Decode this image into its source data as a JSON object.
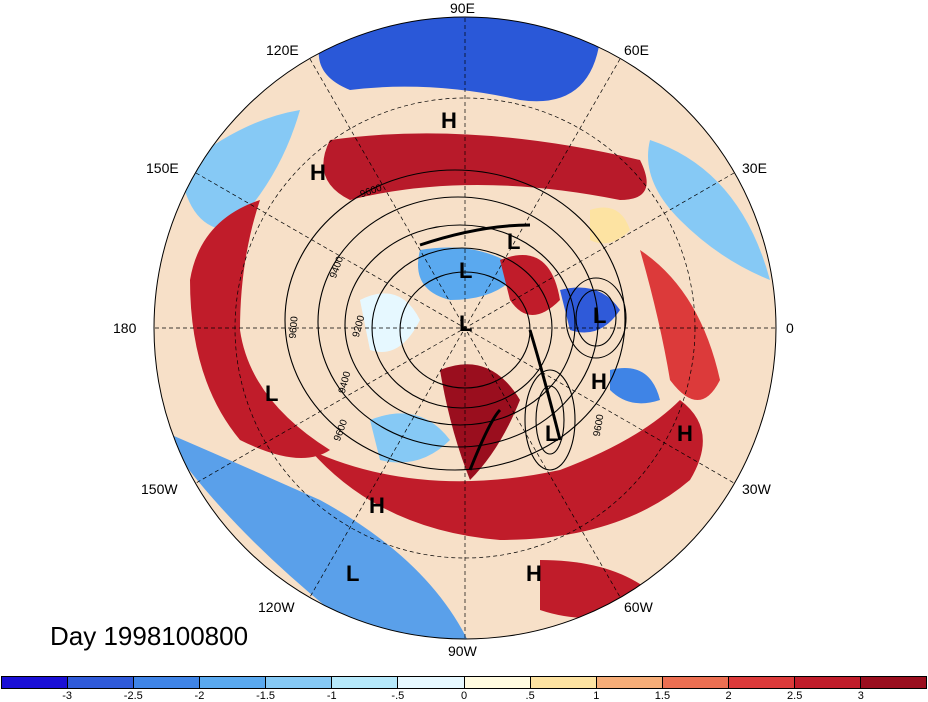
{
  "title": "Day 1998100800",
  "map": {
    "projection": "polar stereographic, north pole",
    "longitude_labels": {
      "top": "90E",
      "upper_right_1": "60E",
      "upper_right_2": "30E",
      "right": "0",
      "lower_right_1": "30W",
      "lower_right_2": "60W",
      "bottom": "90W",
      "lower_left_1": "120W",
      "lower_left_2": "150W",
      "left": "180",
      "upper_left_1": "150E",
      "upper_left_2": "120E"
    },
    "pressure_centers": [
      {
        "symbol": "H"
      },
      {
        "symbol": "H"
      },
      {
        "symbol": "L"
      },
      {
        "symbol": "L"
      },
      {
        "symbol": "L"
      },
      {
        "symbol": "L"
      },
      {
        "symbol": "H"
      },
      {
        "symbol": "L"
      },
      {
        "symbol": "L"
      },
      {
        "symbol": "H"
      },
      {
        "symbol": "H"
      },
      {
        "symbol": "L"
      },
      {
        "symbol": "H"
      }
    ],
    "contour_labels": [
      "9600",
      "9400",
      "9200",
      "9400",
      "9600",
      "9600",
      "9600"
    ]
  },
  "colorbar": {
    "ticks": [
      "-3",
      "-2.5",
      "-2",
      "-1.5",
      "-1",
      "-.5",
      "0",
      ".5",
      "1",
      "1.5",
      "2",
      "2.5",
      "3"
    ],
    "colors": [
      "#1a0fd6",
      "#2f5ad9",
      "#3f84e6",
      "#5aa9ef",
      "#86c9f5",
      "#b6e9fb",
      "#e6f8ff",
      "#fffbe0",
      "#fde3a2",
      "#f6ad78",
      "#ec6f52",
      "#dc3a3a",
      "#c01c2a",
      "#9a0e1e"
    ]
  }
}
